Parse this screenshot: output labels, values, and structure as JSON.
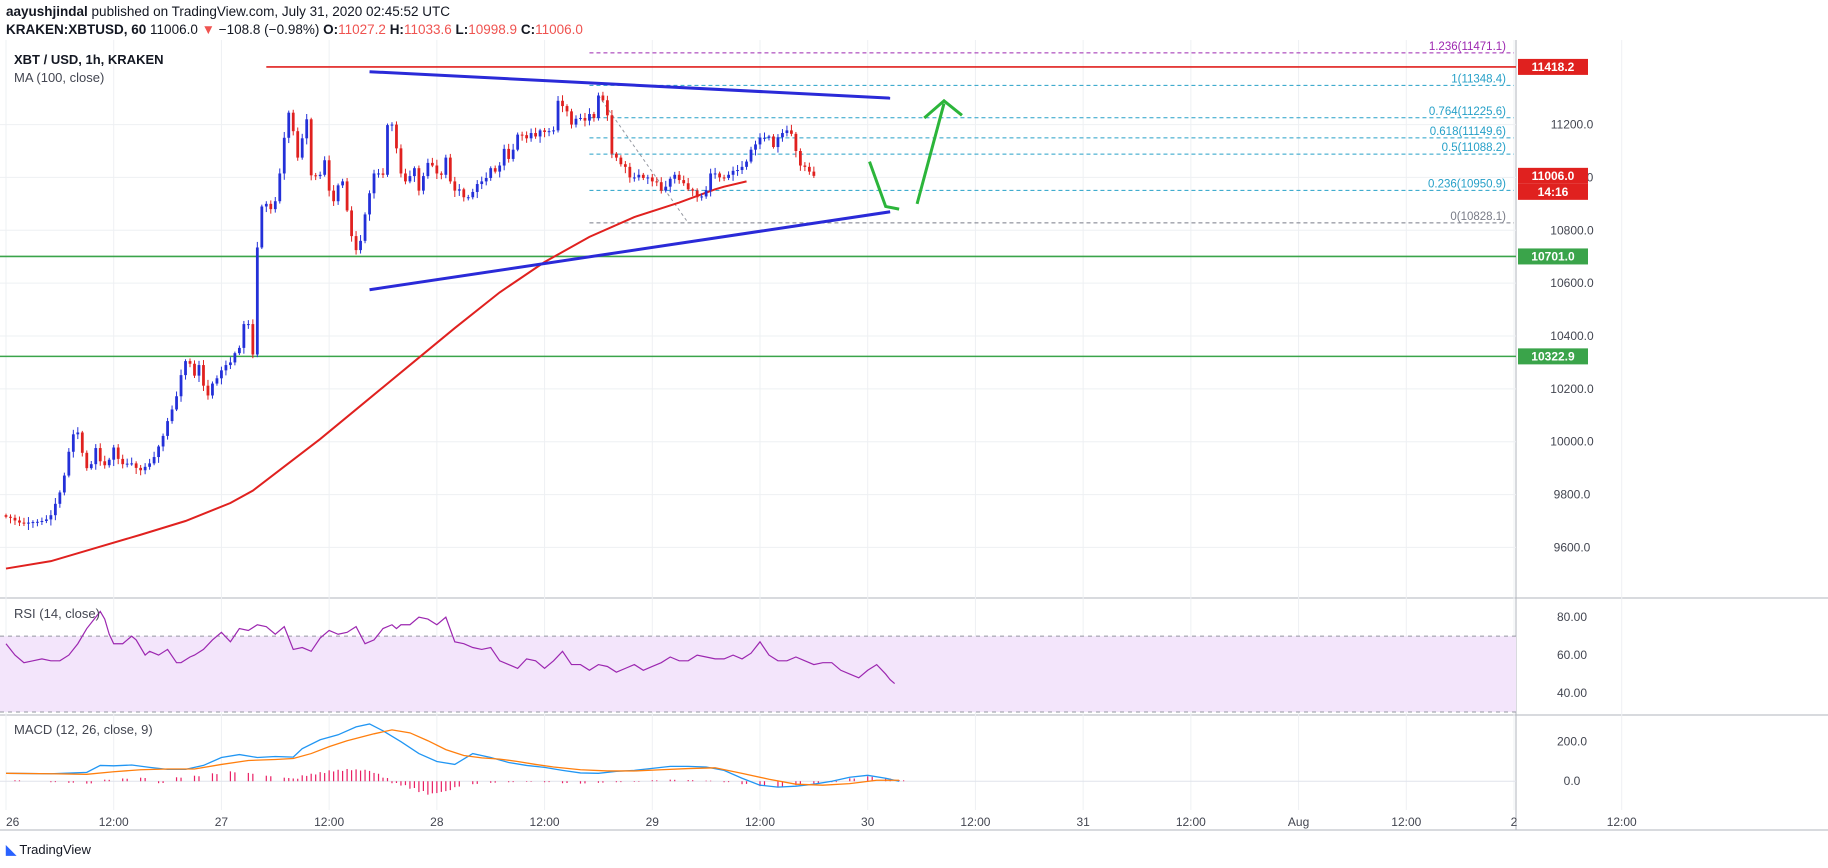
{
  "header": {
    "author": "aayushjindal",
    "published": "published on TradingView.com, July 31, 2020 02:45:52 UTC",
    "symbol": "KRAKEN:XBTUSD, 60",
    "last": "11006.0",
    "change": "−108.8 (−0.98%)",
    "o_label": "O:",
    "o": "11027.2",
    "h_label": "H:",
    "h": "11033.6",
    "l_label": "L:",
    "l": "10998.9",
    "c_label": "C:",
    "c": "11006.0"
  },
  "pane_labels": {
    "main_title": "XBT / USD, 1h, KRAKEN",
    "ma": "MA (100, close)",
    "rsi": "RSI (14, close)",
    "macd": "MACD (12, 26, close, 9)"
  },
  "footer": {
    "brand": "TradingView"
  },
  "colors": {
    "up": "#2330d8",
    "down": "#e0211f",
    "ma": "#e0211f",
    "trend": "#2a2ad8",
    "resistance": "#e0211f",
    "support": "#3aa44a",
    "arrow": "#2cb53a",
    "rsi_line": "#9c27b0",
    "rsi_band": "#f3e5fb",
    "macd": "#2196f3",
    "signal": "#ff7f0e",
    "hist": "#e91e63",
    "price_tag": "#e0211f"
  },
  "chart_data": [
    {
      "type": "candlestick",
      "title": "XBT / USD, 1h, KRAKEN",
      "x_ticks": [
        "26",
        "12:00",
        "27",
        "12:00",
        "28",
        "12:00",
        "29",
        "12:00",
        "30",
        "12:00",
        "31",
        "12:00",
        "Aug",
        "12:00",
        "2",
        "12:00"
      ],
      "x_range_hours": [
        0,
        168
      ],
      "y_ticks": [
        "9600.0",
        "9800.0",
        "10000.0",
        "10200.0",
        "10400.0",
        "10600.0",
        "10800.0",
        "11000.0",
        "11200.0"
      ],
      "ylim": [
        9420,
        11520
      ],
      "closes": [
        9716,
        9712,
        9702,
        9694,
        9690,
        9694,
        9696,
        9697,
        9700,
        9706,
        9722,
        9765,
        9808,
        9872,
        9962,
        10028,
        10035,
        9958,
        9900,
        9915,
        9976,
        9926,
        9911,
        9932,
        9978,
        9935,
        9915,
        9917,
        9918,
        9901,
        9892,
        9905,
        9918,
        9942,
        9982,
        10022,
        10078,
        10122,
        10172,
        10252,
        10305,
        10295,
        10250,
        10290,
        10212,
        10175,
        10220,
        10240,
        10270,
        10290,
        10300,
        10335,
        10355,
        10445,
        10445,
        10330,
        10735,
        10890,
        10900,
        10880,
        10910,
        11015,
        11150,
        11245,
        11175,
        11075,
        11148,
        11220,
        11008,
        11005,
        11010,
        11065,
        10950,
        10910,
        10970,
        10985,
        10875,
        10778,
        10725,
        10760,
        10860,
        10940,
        11015,
        11015,
        11010,
        11198,
        11200,
        11110,
        11015,
        10985,
        11005,
        11035,
        10950,
        11005,
        11055,
        11045,
        11015,
        11010,
        11075,
        10985,
        10950,
        10955,
        10925,
        10925,
        10945,
        10975,
        10985,
        10998,
        11035,
        11022,
        11045,
        11108,
        11070,
        11105,
        11162,
        11160,
        11148,
        11168,
        11155,
        11178,
        11172,
        11175,
        11178,
        11290,
        11270,
        11250,
        11200,
        11222,
        11225,
        11215,
        11240,
        11225,
        11310,
        11292,
        11235,
        11090,
        11075,
        11050,
        11040,
        11000,
        11000,
        11010,
        10998,
        11000,
        10985,
        10982,
        10950,
        10965,
        10995,
        11010,
        10990,
        10978,
        10955,
        10950,
        10925,
        10928,
        10952,
        11015,
        11015,
        11000,
        10998,
        11010,
        11025,
        11028,
        11040,
        11060,
        11105,
        11125,
        11150,
        11150,
        11155,
        11115,
        11152,
        11168,
        11178,
        11165,
        11100,
        11045,
        11040,
        11022,
        11006
      ],
      "ma_100": [
        [
          0,
          9520
        ],
        [
          10,
          9548
        ],
        [
          20,
          9598
        ],
        [
          30,
          9648
        ],
        [
          40,
          9700
        ],
        [
          50,
          9768
        ],
        [
          55,
          9815
        ],
        [
          60,
          9880
        ],
        [
          70,
          10010
        ],
        [
          80,
          10150
        ],
        [
          90,
          10290
        ],
        [
          100,
          10430
        ],
        [
          110,
          10565
        ],
        [
          120,
          10680
        ],
        [
          130,
          10775
        ],
        [
          140,
          10850
        ],
        [
          150,
          10905
        ],
        [
          158,
          10955
        ],
        [
          160,
          10965
        ],
        [
          165,
          10985
        ]
      ],
      "fibonacci": [
        {
          "level": "1.236",
          "price": "11471.1",
          "value": 11471.1
        },
        {
          "level": "1",
          "price": "11348.4",
          "value": 11348.4
        },
        {
          "level": "0.764",
          "price": "11225.6",
          "value": 11225.6
        },
        {
          "level": "0.618",
          "price": "11149.6",
          "value": 11149.6
        },
        {
          "level": "0.5",
          "price": "11088.2",
          "value": 11088.2
        },
        {
          "level": "0.236",
          "price": "10950.9",
          "value": 10950.9
        },
        {
          "level": "0",
          "price": "10828.1",
          "value": 10828.1
        }
      ],
      "horizontal_levels": [
        {
          "name": "resistance",
          "value": 11418.2,
          "label": "11418.2"
        },
        {
          "name": "support-1",
          "value": 10701.0,
          "label": "10701.0"
        },
        {
          "name": "support-2",
          "value": 10322.9,
          "label": "10322.9"
        }
      ],
      "current_price_label": "11006.0",
      "countdown_label": "14:16",
      "triangle_upper": [
        [
          40.5,
          11400
        ],
        [
          98.5,
          11300
        ]
      ],
      "triangle_lower": [
        [
          40.5,
          10575
        ],
        [
          98.5,
          10870
        ]
      ]
    },
    {
      "type": "line",
      "title": "RSI (14, close)",
      "y_ticks": [
        "80.00",
        "60.00",
        "40.00"
      ],
      "ylim": [
        30,
        88
      ],
      "band": [
        30,
        70
      ],
      "values": [
        [
          0,
          66
        ],
        [
          2,
          60
        ],
        [
          4,
          56
        ],
        [
          6,
          57
        ],
        [
          8,
          58
        ],
        [
          10,
          57
        ],
        [
          12,
          57
        ],
        [
          14,
          60
        ],
        [
          16,
          66
        ],
        [
          18,
          74
        ],
        [
          20,
          80
        ],
        [
          21,
          83
        ],
        [
          22,
          79
        ],
        [
          23,
          71
        ],
        [
          24,
          66
        ],
        [
          26,
          66
        ],
        [
          28,
          70
        ],
        [
          29,
          68
        ],
        [
          31,
          60
        ],
        [
          32,
          62
        ],
        [
          34,
          60
        ],
        [
          36,
          63
        ],
        [
          38,
          56
        ],
        [
          39,
          56
        ],
        [
          41,
          59
        ],
        [
          42,
          60
        ],
        [
          44,
          63
        ],
        [
          46,
          68
        ],
        [
          48,
          72
        ],
        [
          50,
          67
        ],
        [
          52,
          74
        ],
        [
          54,
          73
        ],
        [
          56,
          76
        ],
        [
          58,
          75
        ],
        [
          60,
          71
        ],
        [
          62,
          75
        ],
        [
          64,
          63
        ],
        [
          66,
          64
        ],
        [
          68,
          62
        ],
        [
          70,
          69
        ],
        [
          72,
          73
        ],
        [
          74,
          71
        ],
        [
          76,
          72
        ],
        [
          78,
          75
        ],
        [
          80,
          66
        ],
        [
          82,
          68
        ],
        [
          84,
          74
        ],
        [
          86,
          76
        ],
        [
          87,
          74
        ],
        [
          88,
          76
        ],
        [
          90,
          76
        ],
        [
          92,
          80
        ],
        [
          94,
          79
        ],
        [
          96,
          76
        ],
        [
          98,
          80
        ],
        [
          100,
          67
        ],
        [
          102,
          66
        ],
        [
          104,
          64
        ],
        [
          106,
          63
        ],
        [
          108,
          64
        ],
        [
          110,
          57
        ],
        [
          112,
          55
        ],
        [
          113,
          54
        ],
        [
          114,
          53
        ],
        [
          116,
          58
        ],
        [
          118,
          57
        ],
        [
          120,
          53
        ],
        [
          122,
          57
        ],
        [
          124,
          62
        ],
        [
          126,
          55
        ],
        [
          128,
          55
        ],
        [
          130,
          52
        ],
        [
          132,
          55
        ],
        [
          134,
          54
        ],
        [
          136,
          51
        ],
        [
          138,
          53
        ],
        [
          140,
          55
        ],
        [
          142,
          52
        ],
        [
          144,
          54
        ],
        [
          146,
          56
        ],
        [
          148,
          59
        ],
        [
          150,
          57
        ],
        [
          152,
          57
        ],
        [
          154,
          60
        ],
        [
          156,
          59
        ],
        [
          158,
          58
        ],
        [
          160,
          58
        ],
        [
          162,
          60
        ],
        [
          164,
          58
        ],
        [
          166,
          61
        ],
        [
          168,
          67
        ],
        [
          170,
          60
        ],
        [
          172,
          57
        ],
        [
          174,
          57
        ],
        [
          176,
          59
        ],
        [
          178,
          57
        ],
        [
          180,
          55
        ],
        [
          182,
          56
        ],
        [
          184,
          56
        ],
        [
          186,
          52
        ],
        [
          188,
          50
        ],
        [
          190,
          48
        ],
        [
          192,
          52
        ],
        [
          194,
          55
        ],
        [
          196,
          50
        ],
        [
          197,
          47
        ],
        [
          198,
          45
        ]
      ]
    },
    {
      "type": "line",
      "title": "MACD (12, 26, close, 9)",
      "y_ticks": [
        "200.0",
        "0.0"
      ],
      "ylim": [
        -95,
        320
      ],
      "macd": [
        [
          0,
          40
        ],
        [
          10,
          38
        ],
        [
          18,
          45
        ],
        [
          21,
          80
        ],
        [
          24,
          78
        ],
        [
          28,
          82
        ],
        [
          32,
          70
        ],
        [
          36,
          60
        ],
        [
          40,
          60
        ],
        [
          44,
          80
        ],
        [
          48,
          120
        ],
        [
          52,
          135
        ],
        [
          56,
          120
        ],
        [
          60,
          125
        ],
        [
          64,
          122
        ],
        [
          66,
          165
        ],
        [
          70,
          210
        ],
        [
          74,
          235
        ],
        [
          78,
          275
        ],
        [
          81,
          290
        ],
        [
          84,
          255
        ],
        [
          88,
          200
        ],
        [
          92,
          140
        ],
        [
          96,
          100
        ],
        [
          100,
          85
        ],
        [
          104,
          140
        ],
        [
          108,
          120
        ],
        [
          112,
          95
        ],
        [
          116,
          80
        ],
        [
          120,
          70
        ],
        [
          124,
          55
        ],
        [
          128,
          42
        ],
        [
          132,
          40
        ],
        [
          136,
          50
        ],
        [
          140,
          55
        ],
        [
          144,
          65
        ],
        [
          148,
          75
        ],
        [
          152,
          75
        ],
        [
          156,
          72
        ],
        [
          160,
          55
        ],
        [
          164,
          15
        ],
        [
          168,
          -20
        ],
        [
          172,
          -30
        ],
        [
          176,
          -25
        ],
        [
          180,
          -15
        ],
        [
          184,
          0
        ],
        [
          188,
          20
        ],
        [
          192,
          30
        ],
        [
          196,
          15
        ],
        [
          199,
          0
        ]
      ],
      "signal": [
        [
          0,
          40
        ],
        [
          10,
          38
        ],
        [
          18,
          35
        ],
        [
          24,
          48
        ],
        [
          30,
          58
        ],
        [
          36,
          62
        ],
        [
          42,
          62
        ],
        [
          48,
          85
        ],
        [
          54,
          105
        ],
        [
          60,
          110
        ],
        [
          64,
          115
        ],
        [
          68,
          140
        ],
        [
          72,
          175
        ],
        [
          76,
          205
        ],
        [
          82,
          240
        ],
        [
          86,
          260
        ],
        [
          90,
          245
        ],
        [
          94,
          205
        ],
        [
          98,
          160
        ],
        [
          102,
          130
        ],
        [
          106,
          118
        ],
        [
          110,
          112
        ],
        [
          114,
          100
        ],
        [
          118,
          85
        ],
        [
          122,
          72
        ],
        [
          128,
          58
        ],
        [
          134,
          52
        ],
        [
          140,
          52
        ],
        [
          146,
          58
        ],
        [
          152,
          64
        ],
        [
          158,
          68
        ],
        [
          164,
          40
        ],
        [
          170,
          10
        ],
        [
          176,
          -15
        ],
        [
          182,
          -20
        ],
        [
          188,
          -12
        ],
        [
          194,
          5
        ],
        [
          199,
          5
        ]
      ],
      "histogram": [
        [
          2,
          5
        ],
        [
          6,
          0
        ],
        [
          10,
          -5
        ],
        [
          14,
          -8
        ],
        [
          18,
          -12
        ],
        [
          22,
          8
        ],
        [
          26,
          14
        ],
        [
          30,
          18
        ],
        [
          34,
          -10
        ],
        [
          38,
          20
        ],
        [
          42,
          28
        ],
        [
          46,
          40
        ],
        [
          50,
          50
        ],
        [
          54,
          42
        ],
        [
          58,
          28
        ],
        [
          62,
          18
        ],
        [
          64,
          14
        ],
        [
          66,
          30
        ],
        [
          68,
          38
        ],
        [
          70,
          46
        ],
        [
          72,
          55
        ],
        [
          74,
          58
        ],
        [
          76,
          62
        ],
        [
          78,
          60
        ],
        [
          80,
          58
        ],
        [
          82,
          42
        ],
        [
          84,
          18
        ],
        [
          86,
          -10
        ],
        [
          88,
          -22
        ],
        [
          90,
          -38
        ],
        [
          92,
          -55
        ],
        [
          94,
          -68
        ],
        [
          96,
          -60
        ],
        [
          98,
          -50
        ],
        [
          100,
          -30
        ],
        [
          104,
          -15
        ],
        [
          108,
          -8
        ],
        [
          112,
          -5
        ],
        [
          116,
          -3
        ],
        [
          120,
          -5
        ],
        [
          124,
          -10
        ],
        [
          128,
          -12
        ],
        [
          132,
          -8
        ],
        [
          136,
          -5
        ],
        [
          140,
          -3
        ],
        [
          144,
          5
        ],
        [
          148,
          8
        ],
        [
          152,
          6
        ],
        [
          156,
          3
        ],
        [
          160,
          -5
        ],
        [
          164,
          -15
        ],
        [
          168,
          -25
        ],
        [
          172,
          -30
        ],
        [
          176,
          -20
        ],
        [
          180,
          -12
        ],
        [
          184,
          -5
        ],
        [
          188,
          15
        ],
        [
          192,
          25
        ],
        [
          196,
          15
        ],
        [
          199,
          5
        ]
      ]
    }
  ]
}
